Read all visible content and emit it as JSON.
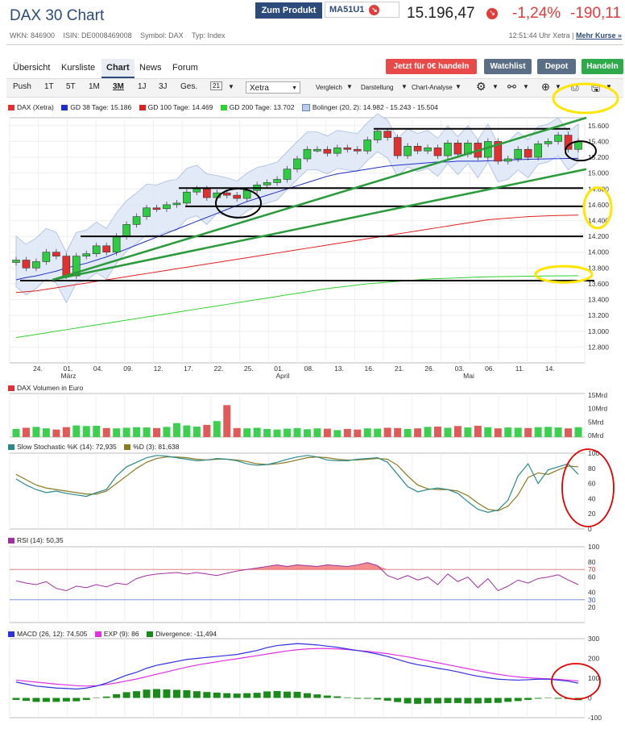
{
  "header": {
    "title": "DAX 30 Chart",
    "zum_produkt": "Zum Produkt",
    "product_code": "MA51U1",
    "price": "15.196,47",
    "change_pct": "-1,24%",
    "change_abs": "-190,11",
    "wkn": "WKN: 846900",
    "isin": "ISIN: DE0008469008",
    "symbol": "Symbol: DAX",
    "typ": "Typ: Index",
    "time": "12:51:44 Uhr Xetra |",
    "more": "Mehr Kurse »"
  },
  "tabs": [
    "Übersicht",
    "Kursliste",
    "Chart",
    "News",
    "Forum"
  ],
  "active_tab": "Chart",
  "buttons": {
    "trade": "Jetzt für 0€ handeln",
    "watchlist": "Watchlist",
    "depot": "Depot",
    "handeln": "Handeln",
    "trade_color": "#e84a4a",
    "watch_color": "#5a6f86",
    "depot_color": "#5a6f86",
    "handeln_color": "#2eaa4a"
  },
  "toolbar": {
    "push": "Push",
    "ranges": [
      "1T",
      "5T",
      "1M",
      "3M",
      "1J",
      "3J",
      "Ges."
    ],
    "active_range": "3M",
    "calendar": "21",
    "exchange": "Xetra",
    "vergleich": "Vergleich",
    "darstellung": "Darstellung",
    "analyse": "Chart-Analyse"
  },
  "legends": {
    "main": [
      "DAX (Xetra)",
      "GD 38 Tage: 15.186",
      "GD 100 Tage: 14.469",
      "GD 200 Tage: 13.702",
      "Bolinger (20, 2): 14.982 - 15.243 - 15.504"
    ],
    "volume": "DAX Volumen in Euro",
    "stoch": [
      "Slow Stochastic %K (14): 72,935",
      "%D (3): 81,638"
    ],
    "rsi": "RSI (14): 50,35",
    "macd": [
      "MACD (26, 12): 74,505",
      "EXP (9): 86",
      "Divergence: -11,494"
    ]
  },
  "colors": {
    "dax": "#e03030",
    "gd38": "#2030c8",
    "gd100": "#e02020",
    "gd200": "#30d030",
    "boll": "#b8cbe8",
    "stoch_k": "#2a8a8a",
    "stoch_d": "#8a7a20",
    "rsi": "#a030a0",
    "macd": "#3030e0",
    "exp": "#e030e0",
    "div": "#1a8a1a"
  },
  "chart_data": [
    {
      "type": "candlestick",
      "ylim": [
        12600,
        15700
      ],
      "yticks": [
        "15.600",
        "15.400",
        "15.200",
        "15.000",
        "14.800",
        "14.600",
        "14.400",
        "14.200",
        "14.000",
        "13.800",
        "13.600",
        "13.400",
        "13.200",
        "13.000",
        "12.800"
      ],
      "xticks": [
        "24.",
        "01.",
        "04.",
        "09.",
        "12.",
        "17.",
        "22.",
        "25.",
        "01.",
        "08.",
        "13.",
        "16.",
        "21.",
        "26.",
        "03.",
        "06.",
        "11.",
        "14."
      ],
      "month_labels": [
        "März",
        "April",
        "Mai"
      ],
      "close": [
        13900,
        13800,
        13880,
        14000,
        13950,
        13700,
        13950,
        13980,
        14080,
        14000,
        14200,
        14350,
        14450,
        14560,
        14550,
        14600,
        14620,
        14760,
        14800,
        14690,
        14750,
        14720,
        14680,
        14780,
        14850,
        14880,
        14920,
        15050,
        15180,
        15300,
        15300,
        15250,
        15320,
        15300,
        15280,
        15420,
        15530,
        15450,
        15220,
        15340,
        15280,
        15320,
        15220,
        15380,
        15240,
        15380,
        15200,
        15400,
        15150,
        15180,
        15300,
        15200,
        15370,
        15400,
        15480,
        15300,
        15400
      ],
      "gd38": [
        13650,
        13680,
        13700,
        13730,
        13760,
        13800,
        13830,
        13860,
        13900,
        13940,
        13990,
        14040,
        14090,
        14140,
        14190,
        14240,
        14290,
        14340,
        14390,
        14440,
        14490,
        14540,
        14590,
        14640,
        14680,
        14720,
        14760,
        14800,
        14840,
        14880,
        14920,
        14960,
        14990,
        15010,
        15030,
        15050,
        15070,
        15090,
        15100,
        15110,
        15120,
        15130,
        15140,
        15140,
        15150,
        15150,
        15150,
        15155,
        15160,
        15165,
        15170,
        15175,
        15178,
        15180,
        15183,
        15185,
        15186
      ],
      "gd100": [
        13490,
        13500,
        13510,
        13530,
        13550,
        13570,
        13590,
        13610,
        13630,
        13650,
        13670,
        13690,
        13710,
        13730,
        13750,
        13770,
        13790,
        13810,
        13830,
        13850,
        13870,
        13890,
        13910,
        13930,
        13950,
        13970,
        13990,
        14010,
        14030,
        14050,
        14070,
        14090,
        14110,
        14130,
        14150,
        14170,
        14190,
        14210,
        14230,
        14250,
        14270,
        14290,
        14310,
        14330,
        14350,
        14370,
        14390,
        14410,
        14420,
        14430,
        14440,
        14450,
        14455,
        14460,
        14463,
        14466,
        14469
      ],
      "gd200": [
        12920,
        12940,
        12960,
        12980,
        13000,
        13020,
        13040,
        13060,
        13080,
        13100,
        13120,
        13140,
        13160,
        13180,
        13200,
        13220,
        13240,
        13260,
        13280,
        13300,
        13320,
        13340,
        13360,
        13380,
        13400,
        13420,
        13440,
        13460,
        13480,
        13500,
        13520,
        13540,
        13555,
        13570,
        13585,
        13600,
        13610,
        13620,
        13630,
        13640,
        13650,
        13660,
        13665,
        13670,
        13675,
        13680,
        13685,
        13688,
        13690,
        13692,
        13694,
        13696,
        13698,
        13699,
        13700,
        13701,
        13702
      ]
    },
    {
      "type": "bar",
      "title": "DAX Volumen in Euro",
      "yticks": [
        "15Mrd",
        "10Mrd",
        "5Mrd",
        "0Mrd"
      ],
      "ylim": [
        0,
        15
      ],
      "values": [
        2.8,
        3.2,
        3.5,
        3.0,
        2.6,
        3.4,
        4.0,
        3.8,
        3.9,
        3.1,
        3.0,
        3.2,
        3.4,
        3.3,
        3.1,
        3.5,
        4.8,
        4.0,
        3.6,
        4.2,
        5.5,
        11,
        3.1,
        3.0,
        3.2,
        2.8,
        2.6,
        2.9,
        3.1,
        2.7,
        3.0,
        2.9,
        2.4,
        2.8,
        2.6,
        3.0,
        2.9,
        3.2,
        3.1,
        2.8,
        3.0,
        3.5,
        3.6,
        3.2,
        3.8,
        3.3,
        3.9,
        3.4,
        3.0,
        3.3,
        3.2,
        3.1,
        3.4,
        3.5,
        3.3,
        3.0,
        3.4
      ]
    },
    {
      "type": "line",
      "title": "Slow Stochastic",
      "yticks": [
        "100",
        "80",
        "60",
        "40",
        "20",
        "0"
      ],
      "ylim": [
        0,
        100
      ],
      "series": [
        {
          "name": "%K (14)",
          "values": [
            66,
            58,
            52,
            48,
            50,
            47,
            45,
            43,
            48,
            52,
            70,
            82,
            88,
            94,
            97,
            96,
            94,
            92,
            90,
            91,
            93,
            92,
            90,
            86,
            84,
            85,
            88,
            92,
            95,
            97,
            95,
            91,
            90,
            90,
            92,
            93,
            94,
            88,
            72,
            56,
            49,
            52,
            54,
            52,
            47,
            36,
            26,
            22,
            25,
            38,
            70,
            86,
            60,
            78,
            82,
            86,
            72
          ]
        },
        {
          "name": "%D (3)",
          "values": [
            72,
            65,
            58,
            54,
            52,
            50,
            48,
            46,
            46,
            50,
            60,
            70,
            80,
            88,
            93,
            95,
            95,
            94,
            92,
            91,
            92,
            92,
            91,
            89,
            86,
            85,
            86,
            88,
            91,
            94,
            95,
            94,
            92,
            91,
            91,
            92,
            93,
            92,
            84,
            70,
            58,
            53,
            52,
            52,
            50,
            44,
            34,
            26,
            24,
            30,
            45,
            68,
            74,
            72,
            78,
            83,
            82
          ]
        }
      ]
    },
    {
      "type": "line",
      "title": "RSI (14)",
      "yticks": [
        "100",
        "80",
        "70",
        "60",
        "40",
        "30",
        "20"
      ],
      "ylim": [
        0,
        100
      ],
      "series": [
        {
          "name": "RSI",
          "values": [
            55,
            52,
            50,
            54,
            45,
            42,
            48,
            46,
            50,
            47,
            52,
            50,
            58,
            62,
            64,
            65,
            66,
            64,
            66,
            64,
            62,
            65,
            68,
            70,
            72,
            74,
            76,
            74,
            76,
            75,
            74,
            76,
            75,
            74,
            76,
            79,
            75,
            62,
            57,
            62,
            56,
            60,
            50,
            64,
            54,
            60,
            46,
            58,
            42,
            48,
            56,
            52,
            58,
            60,
            63,
            56,
            50
          ]
        }
      ]
    },
    {
      "type": "line",
      "title": "MACD",
      "yticks": [
        "300",
        "200",
        "100",
        "0",
        "-100"
      ],
      "ylim": [
        -100,
        300
      ],
      "series": [
        {
          "name": "MACD (26, 12)",
          "values": [
            80,
            70,
            60,
            55,
            50,
            48,
            45,
            50,
            60,
            75,
            95,
            115,
            130,
            150,
            165,
            175,
            185,
            195,
            200,
            205,
            210,
            215,
            220,
            230,
            240,
            255,
            265,
            270,
            275,
            272,
            268,
            262,
            256,
            248,
            240,
            232,
            222,
            210,
            195,
            180,
            168,
            160,
            150,
            142,
            132,
            120,
            110,
            102,
            95,
            92,
            90,
            92,
            95,
            95,
            90,
            85,
            74.505
          ]
        },
        {
          "name": "EXP (9)",
          "values": [
            90,
            85,
            80,
            75,
            70,
            66,
            62,
            60,
            62,
            68,
            76,
            86,
            96,
            108,
            120,
            132,
            144,
            156,
            166,
            175,
            183,
            191,
            198,
            206,
            214,
            222,
            230,
            238,
            244,
            248,
            250,
            250,
            248,
            245,
            240,
            236,
            230,
            224,
            216,
            208,
            198,
            188,
            178,
            168,
            158,
            148,
            138,
            128,
            120,
            112,
            106,
            102,
            99,
            97,
            94,
            90,
            86
          ]
        },
        {
          "name": "Divergence",
          "values": [
            -10,
            -15,
            -20,
            -20,
            -20,
            -18,
            -17,
            -10,
            -2,
            7,
            19,
            29,
            34,
            42,
            45,
            43,
            41,
            39,
            34,
            30,
            27,
            24,
            22,
            24,
            26,
            33,
            35,
            32,
            31,
            24,
            18,
            12,
            8,
            3,
            0,
            -4,
            -8,
            -14,
            -21,
            -28,
            -30,
            -28,
            -28,
            -26,
            -26,
            -28,
            -28,
            -26,
            -25,
            -20,
            -16,
            -10,
            -4,
            -2,
            -4,
            -5,
            -11.494
          ]
        }
      ]
    }
  ]
}
